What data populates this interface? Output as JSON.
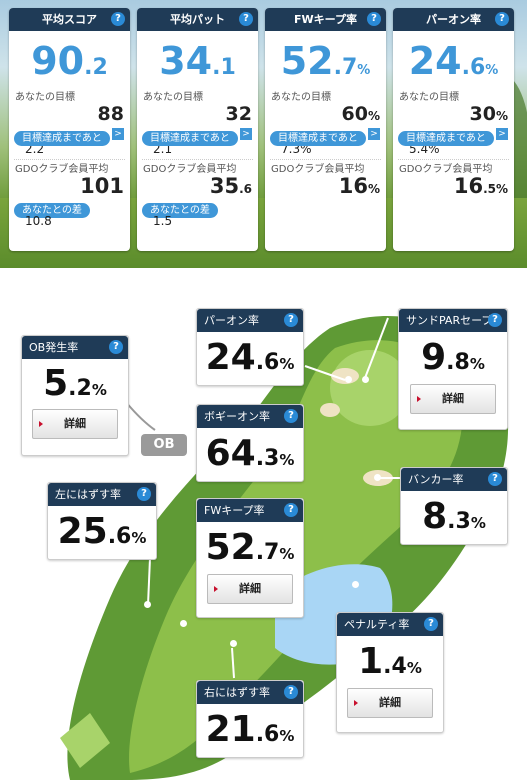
{
  "summary": [
    {
      "title": "平均スコア",
      "int": "90",
      "dec": ".2",
      "unit": "",
      "goal_label": "あなたの目標",
      "goal": "88",
      "goal_unit": "",
      "reach_label": "目標達成まであと",
      "reach": "2.2",
      "avg_label": "GDOクラブ会員平均",
      "avg": "101",
      "avg_dec": "",
      "diff_label": "あなたとの差",
      "diff": "10.8"
    },
    {
      "title": "平均パット",
      "int": "34",
      "dec": ".1",
      "unit": "",
      "goal_label": "あなたの目標",
      "goal": "32",
      "goal_unit": "",
      "reach_label": "目標達成まであと",
      "reach": "2.1",
      "avg_label": "GDOクラブ会員平均",
      "avg": "35",
      "avg_dec": ".6",
      "diff_label": "あなたとの差",
      "diff": "1.5"
    },
    {
      "title": "FWキープ率",
      "int": "52",
      "dec": ".7",
      "unit": "%",
      "goal_label": "あなたの目標",
      "goal": "60",
      "goal_unit": "%",
      "reach_label": "目標達成まであと",
      "reach": "7.3%",
      "avg_label": "GDOクラブ会員平均",
      "avg": "16",
      "avg_dec": "%",
      "diff_label": "",
      "diff": ""
    },
    {
      "title": "パーオン率",
      "int": "24",
      "dec": ".6",
      "unit": "%",
      "goal_label": "あなたの目標",
      "goal": "30",
      "goal_unit": "%",
      "reach_label": "目標達成まであと",
      "reach": "5.4%",
      "avg_label": "GDOクラブ会員平均",
      "avg": "16",
      "avg_dec": ".5%",
      "diff_label": "",
      "diff": ""
    }
  ],
  "help": "?",
  "arrow": ">",
  "ob_tag": "OB",
  "stats": {
    "ob": {
      "title": "OB発生率",
      "int": "5",
      "dec": ".2",
      "unit": "%",
      "detail": "詳細"
    },
    "paron": {
      "title": "パーオン率",
      "int": "24",
      "dec": ".6",
      "unit": "%"
    },
    "sandpar": {
      "title": "サンドPARセーブ",
      "int": "9",
      "dec": ".8",
      "unit": "%",
      "detail": "詳細"
    },
    "bogey": {
      "title": "ボギーオン率",
      "int": "64",
      "dec": ".3",
      "unit": "%"
    },
    "left": {
      "title": "左にはずす率",
      "int": "25",
      "dec": ".6",
      "unit": "%"
    },
    "bunker": {
      "title": "バンカー率",
      "int": "8",
      "dec": ".3",
      "unit": "%"
    },
    "fw": {
      "title": "FWキープ率",
      "int": "52",
      "dec": ".7",
      "unit": "%",
      "detail": "詳細"
    },
    "penalty": {
      "title": "ペナルティ率",
      "int": "1",
      "dec": ".4",
      "unit": "%",
      "detail": "詳細"
    },
    "right": {
      "title": "右にはずす率",
      "int": "21",
      "dec": ".6",
      "unit": "%"
    }
  },
  "colors": {
    "header": "#1f3b57",
    "accent": "#3f97d8",
    "fairway": "#8dbf4a",
    "rough": "#5f9a35",
    "water": "#a9d6f5",
    "sand": "#efe3c4"
  }
}
